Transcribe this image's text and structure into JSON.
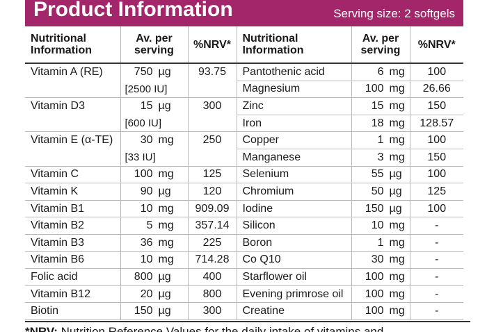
{
  "header": {
    "title": "Product Information",
    "serving": "Serving size: 2 softgels"
  },
  "columns": {
    "name": "Nutritional Information",
    "per": "Av. per serving",
    "nrv": "%NRV*"
  },
  "vitamins": [
    {
      "name": "Vitamin A (RE)",
      "num": "750",
      "unit": "µg",
      "nrv": "93.75",
      "alt": "[2500 IU]"
    },
    {
      "name": "Vitamin D3",
      "num": "15",
      "unit": "µg",
      "nrv": "300",
      "alt": "[600 IU]"
    },
    {
      "name": "Vitamin E (α-TE)",
      "num": "30",
      "unit": "mg",
      "nrv": "250",
      "alt": "[33 IU]"
    },
    {
      "name": "Vitamin C",
      "num": "100",
      "unit": "mg",
      "nrv": "125"
    },
    {
      "name": "Vitamin K",
      "num": "90",
      "unit": "µg",
      "nrv": "120"
    },
    {
      "name": "Vitamin B1",
      "num": "10",
      "unit": "mg",
      "nrv": "909.09"
    },
    {
      "name": "Vitamin B2",
      "num": "5",
      "unit": "mg",
      "nrv": "357.14"
    },
    {
      "name": "Vitamin B3",
      "num": "36",
      "unit": "mg",
      "nrv": "225"
    },
    {
      "name": "Vitamin B6",
      "num": "10",
      "unit": "mg",
      "nrv": "714.28"
    },
    {
      "name": "Folic acid",
      "num": "800",
      "unit": "µg",
      "nrv": "400"
    },
    {
      "name": "Vitamin B12",
      "num": "20",
      "unit": "µg",
      "nrv": "800"
    },
    {
      "name": "Biotin",
      "num": "150",
      "unit": "µg",
      "nrv": "300"
    }
  ],
  "minerals": [
    {
      "name": "Pantothenic acid",
      "num": "6",
      "unit": "mg",
      "nrv": "100"
    },
    {
      "name": "Magnesium",
      "num": "100",
      "unit": "mg",
      "nrv": "26.66"
    },
    {
      "name": "Zinc",
      "num": "15",
      "unit": "mg",
      "nrv": "150"
    },
    {
      "name": "Iron",
      "num": "18",
      "unit": "mg",
      "nrv": "128.57"
    },
    {
      "name": "Copper",
      "num": "1",
      "unit": "mg",
      "nrv": "100"
    },
    {
      "name": "Manganese",
      "num": "3",
      "unit": "mg",
      "nrv": "150"
    },
    {
      "name": "Selenium",
      "num": "55",
      "unit": "µg",
      "nrv": "100"
    },
    {
      "name": "Chromium",
      "num": "50",
      "unit": "µg",
      "nrv": "125"
    },
    {
      "name": "Iodine",
      "num": "150",
      "unit": "µg",
      "nrv": "100"
    },
    {
      "name": "Silicon",
      "num": "10",
      "unit": "mg",
      "nrv": "-"
    },
    {
      "name": "Boron",
      "num": "1",
      "unit": "mg",
      "nrv": "-"
    },
    {
      "name": "Co Q10",
      "num": "30",
      "unit": "mg",
      "nrv": "-"
    },
    {
      "name": "Starflower oil",
      "num": "100",
      "unit": "mg",
      "nrv": "-"
    },
    {
      "name": "Evening primrose oil",
      "num": "100",
      "unit": "mg",
      "nrv": "-"
    },
    {
      "name": "Creatine",
      "num": "100",
      "unit": "mg",
      "nrv": "-"
    }
  ],
  "footnote": {
    "label": "*NRV:",
    "text": "Nutrition Reference Values for the daily intake of vitamins and"
  },
  "colors": {
    "header_bg": "#a3266b",
    "header_text": "#ffffff"
  }
}
